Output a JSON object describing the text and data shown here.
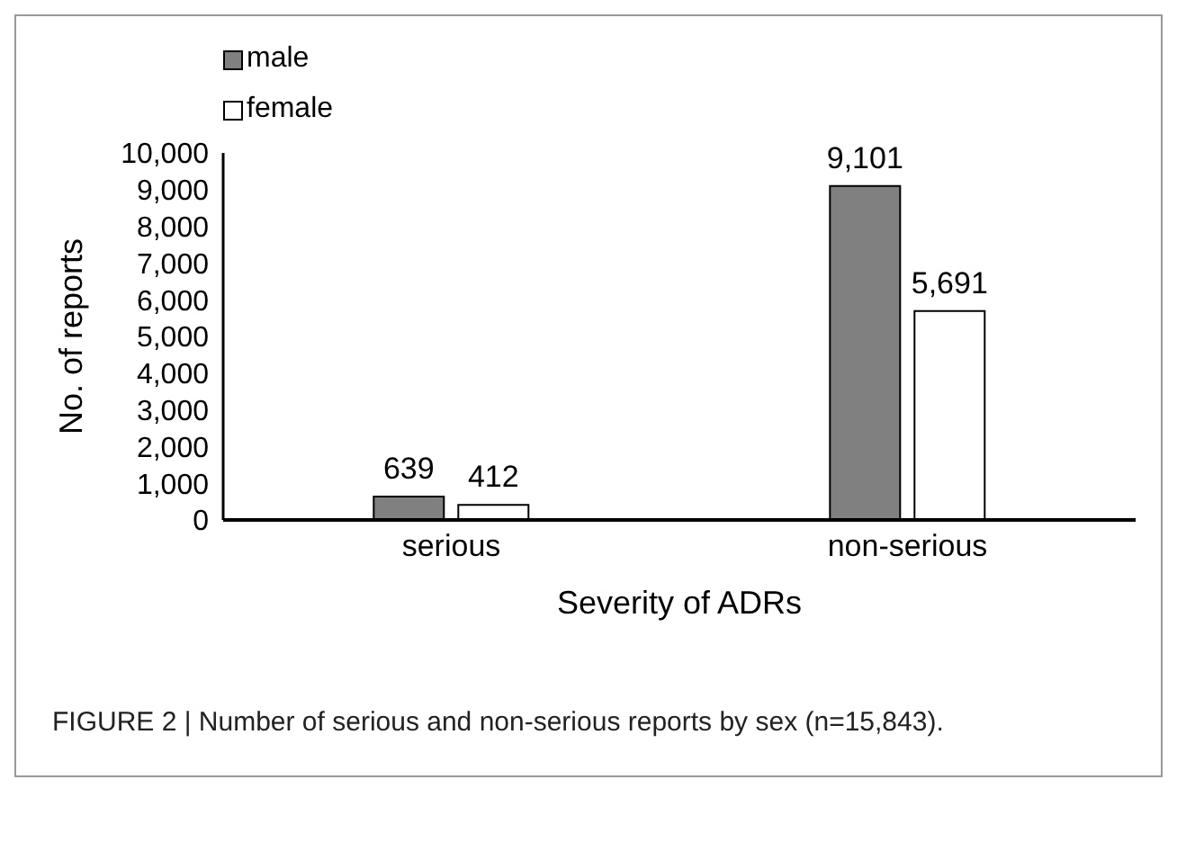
{
  "chart_data": {
    "type": "bar",
    "xlabel": "Severity of ADRs",
    "ylabel": "No. of reports",
    "categories": [
      "serious",
      "non-serious"
    ],
    "series": [
      {
        "name": "male",
        "color": "#808080",
        "values": [
          639,
          9101
        ],
        "value_labels": [
          "639",
          "9,101"
        ]
      },
      {
        "name": "female",
        "color": "#ffffff",
        "values": [
          412,
          5691
        ],
        "value_labels": [
          "412",
          "5,691"
        ]
      }
    ],
    "ylim": [
      0,
      10000
    ],
    "yticks": [
      {
        "value": 0,
        "label": "0"
      },
      {
        "value": 1000,
        "label": "1,000"
      },
      {
        "value": 2000,
        "label": "2,000"
      },
      {
        "value": 3000,
        "label": "3,000"
      },
      {
        "value": 4000,
        "label": "4,000"
      },
      {
        "value": 5000,
        "label": "5,000"
      },
      {
        "value": 6000,
        "label": "6,000"
      },
      {
        "value": 7000,
        "label": "7,000"
      },
      {
        "value": 8000,
        "label": "8,000"
      },
      {
        "value": 9000,
        "label": "9,000"
      },
      {
        "value": 10000,
        "label": "10,000"
      }
    ],
    "grid": false,
    "legend": "top left",
    "annotations": [
      "FIGURE 2 | Number of serious and non-serious reports by sex (n=15,843)."
    ]
  }
}
